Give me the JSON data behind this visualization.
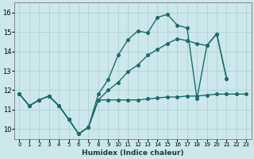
{
  "xlabel": "Humidex (Indice chaleur)",
  "bg_color": "#cce8ec",
  "grid_color": "#aacccc",
  "line_color": "#1a6b6b",
  "xlim": [
    -0.5,
    23.5
  ],
  "ylim": [
    9.5,
    16.5
  ],
  "yticks": [
    10,
    11,
    12,
    13,
    14,
    15,
    16
  ],
  "xticks": [
    0,
    1,
    2,
    3,
    4,
    5,
    6,
    7,
    8,
    9,
    10,
    11,
    12,
    13,
    14,
    15,
    16,
    17,
    18,
    19,
    20,
    21,
    22,
    23
  ],
  "line1_x": [
    0,
    1,
    2,
    3,
    4,
    5,
    6,
    7,
    8,
    9,
    10,
    11,
    12,
    13,
    14,
    15,
    16,
    17,
    18,
    19,
    20,
    21
  ],
  "line1_y": [
    11.8,
    11.2,
    11.5,
    11.7,
    11.2,
    10.5,
    9.75,
    10.1,
    11.8,
    12.55,
    13.8,
    14.6,
    15.05,
    14.95,
    15.75,
    15.9,
    15.35,
    15.2,
    11.55,
    14.3,
    14.9,
    12.6
  ],
  "line2_x": [
    0,
    1,
    2,
    3,
    4,
    5,
    6,
    7,
    8,
    9,
    10,
    11,
    12,
    13,
    14,
    15,
    16,
    17,
    18,
    19,
    20,
    21,
    22,
    23
  ],
  "line2_y": [
    11.8,
    11.2,
    11.5,
    11.7,
    11.2,
    10.5,
    9.75,
    10.1,
    11.5,
    11.5,
    11.5,
    11.5,
    11.5,
    11.55,
    11.6,
    11.65,
    11.65,
    11.7,
    11.7,
    11.75,
    11.8,
    11.8,
    11.8,
    11.8
  ],
  "line3_x": [
    0,
    1,
    2,
    3,
    4,
    5,
    6,
    7,
    8,
    9,
    10,
    11,
    12,
    13,
    14,
    15,
    16,
    17,
    18,
    19,
    20,
    21
  ],
  "line3_y": [
    11.8,
    11.2,
    11.5,
    11.7,
    11.2,
    10.5,
    9.75,
    10.1,
    11.5,
    12.0,
    12.4,
    12.95,
    13.3,
    13.8,
    14.1,
    14.4,
    14.65,
    14.55,
    14.4,
    14.3,
    14.9,
    12.6
  ],
  "marker_size": 2.5,
  "line_width": 1.0
}
